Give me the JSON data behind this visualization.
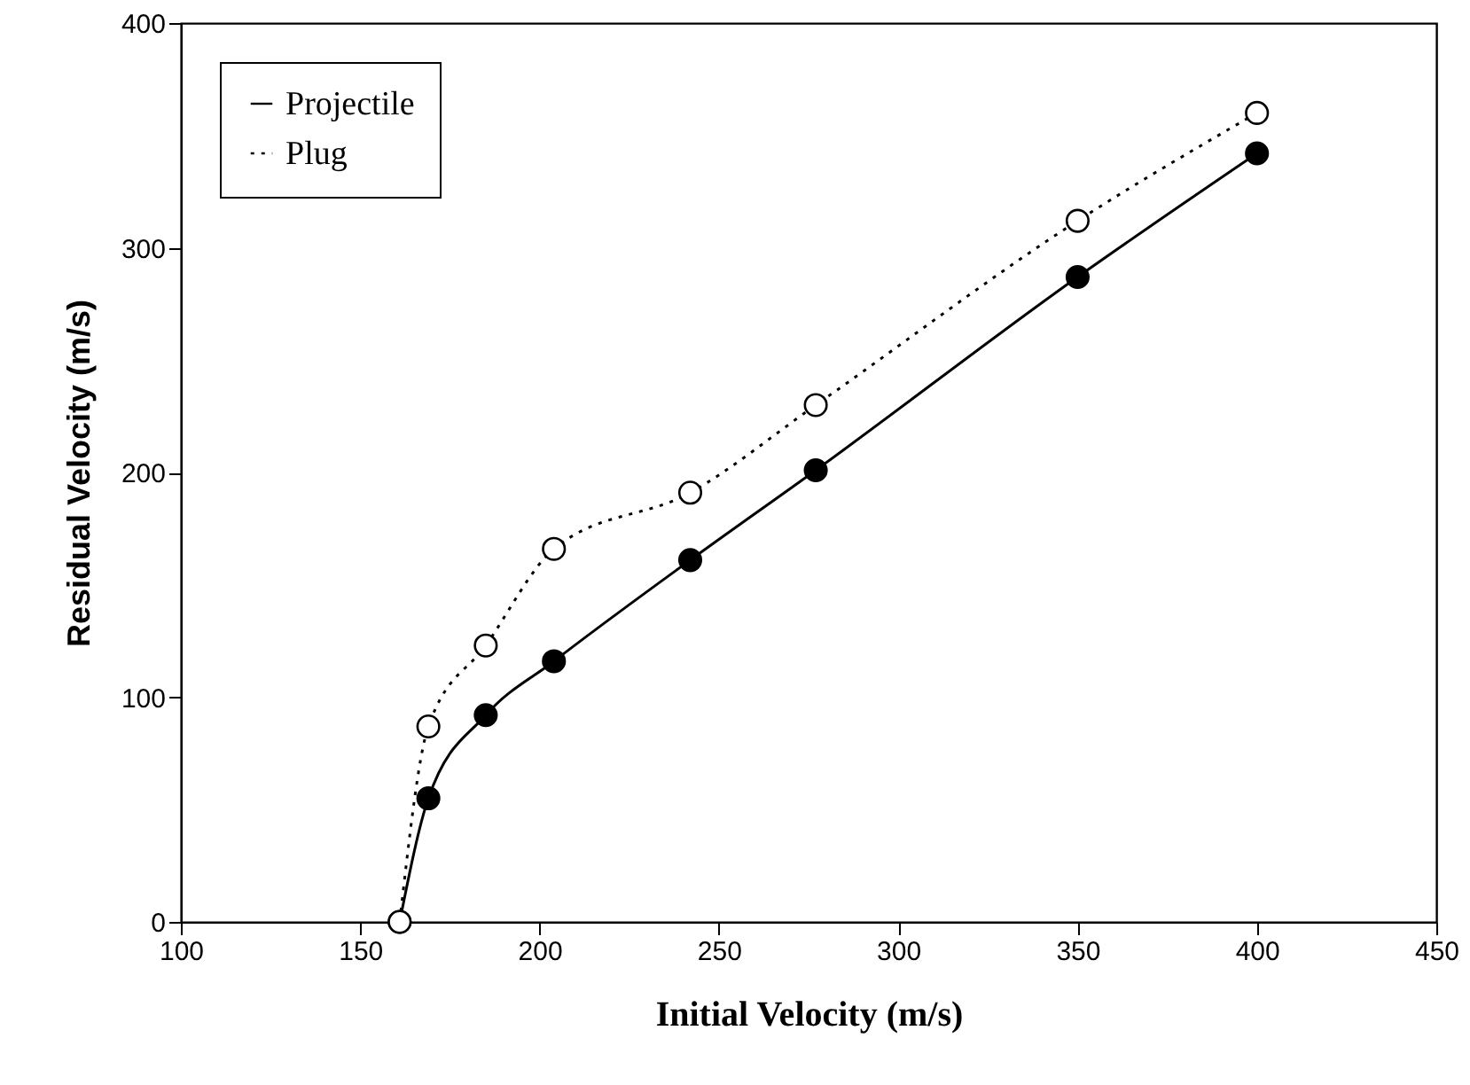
{
  "chart_data": {
    "type": "line",
    "xlabel": "Initial Velocity (m/s)",
    "ylabel": "Residual Velocity (m/s)",
    "xlim": [
      100,
      450
    ],
    "xticks": [
      100,
      150,
      200,
      250,
      300,
      350,
      400,
      450
    ],
    "ylim": [
      0,
      400
    ],
    "yticks": [
      0,
      100,
      200,
      300,
      400
    ],
    "grid": false,
    "legend": "top left",
    "marker": "circle",
    "series": [
      {
        "name": "Projectile",
        "color": "#000000",
        "line_style": "solid",
        "x": [
          161,
          169,
          185,
          204,
          242,
          277,
          350,
          400
        ],
        "values": [
          0,
          55,
          92,
          116,
          161,
          201,
          287,
          342
        ]
      },
      {
        "name": "Plug",
        "color": "#000000",
        "line_style": "dotted",
        "x": [
          161,
          169,
          185,
          204,
          242,
          277,
          350,
          400
        ],
        "values": [
          0,
          87,
          123,
          166,
          191,
          230,
          312,
          360
        ]
      }
    ]
  }
}
